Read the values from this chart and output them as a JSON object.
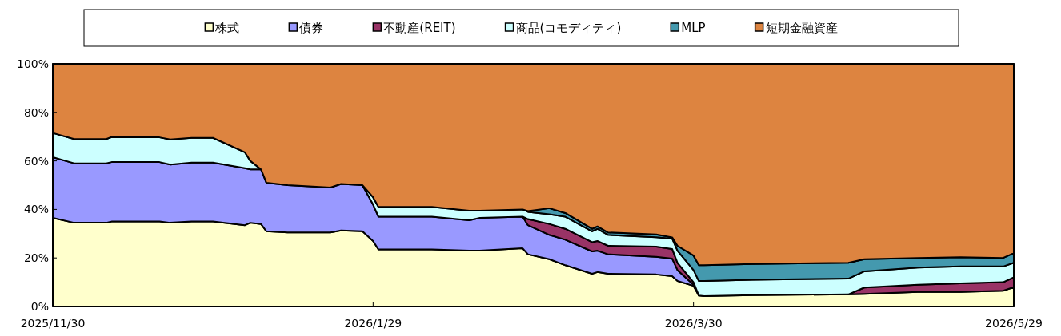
{
  "chart_data": {
    "type": "area",
    "stacked": true,
    "legend": "top",
    "grid": false,
    "x": [
      "2025-11-30",
      "2025-12-04",
      "2025-12-10",
      "2025-12-11",
      "2025-12-20",
      "2025-12-22",
      "2025-12-26",
      "2025-12-30",
      "2026-01-05",
      "2026-01-06",
      "2026-01-08",
      "2026-01-09",
      "2026-01-13",
      "2026-01-21",
      "2026-01-23",
      "2026-01-27",
      "2026-01-29",
      "2026-01-30",
      "2026-02-09",
      "2026-02-16",
      "2026-02-18",
      "2026-02-26",
      "2026-02-27",
      "2026-03-03",
      "2026-03-06",
      "2026-03-11",
      "2026-03-12",
      "2026-03-14",
      "2026-03-23",
      "2026-03-26",
      "2026-03-27",
      "2026-03-30",
      "2026-03-31",
      "2026-04-01",
      "2026-04-10",
      "2026-04-28",
      "2026-05-01",
      "2026-05-11",
      "2026-05-19",
      "2026-05-27",
      "2026-05-29"
    ],
    "xlim": [
      "2025-11-30",
      "2026-05-29"
    ],
    "xticks": [
      {
        "value": "2025-11-30",
        "label": "2025/11/30"
      },
      {
        "value": "2026-01-29",
        "label": "2026/1/29"
      },
      {
        "value": "2026-03-30",
        "label": "2026/3/30"
      },
      {
        "value": "2026-05-29",
        "label": "2026/5/29"
      }
    ],
    "ylim": [
      0,
      100
    ],
    "yticks": [
      {
        "value": 0,
        "label": "0%"
      },
      {
        "value": 20,
        "label": "20%"
      },
      {
        "value": 40,
        "label": "40%"
      },
      {
        "value": 60,
        "label": "60%"
      },
      {
        "value": 80,
        "label": "80%"
      },
      {
        "value": 100,
        "label": "100%"
      }
    ],
    "series": [
      {
        "name": "株式",
        "color": "#ffffcc",
        "values": [
          36.5,
          34.5,
          34.5,
          35,
          35,
          34.5,
          35,
          35,
          33.5,
          34.5,
          34,
          31,
          30.5,
          30.5,
          31.3,
          31,
          27,
          23.5,
          23.5,
          23,
          23,
          24,
          21.5,
          19.5,
          17,
          13.5,
          14.2,
          13.5,
          13.2,
          12.5,
          10.5,
          8.5,
          4.5,
          4.3,
          4.7,
          5,
          5.2,
          6,
          6,
          6.5,
          8
        ]
      },
      {
        "name": "債券",
        "color": "#9999ff",
        "values": [
          25,
          24.5,
          24.5,
          24.5,
          24.5,
          24,
          24.3,
          24.3,
          23.5,
          22,
          22.5,
          20,
          19.5,
          18.5,
          19.2,
          19,
          15,
          13.5,
          13.5,
          12.5,
          13.5,
          13,
          12,
          10,
          10.5,
          9.2,
          8.8,
          8,
          7.3,
          7.2,
          4.5,
          0.5,
          0,
          null,
          null,
          null,
          null,
          null,
          null,
          null,
          null
        ]
      },
      {
        "name": "不動産(REIT)",
        "color": "#993366",
        "values": [
          null,
          null,
          null,
          null,
          null,
          null,
          null,
          null,
          null,
          null,
          null,
          null,
          null,
          null,
          null,
          null,
          null,
          null,
          null,
          null,
          null,
          0,
          2.5,
          4.5,
          4.5,
          3.8,
          4,
          3.5,
          4.2,
          4,
          3,
          1,
          0,
          null,
          null,
          0,
          2.6,
          3,
          3.5,
          3.5,
          4
        ]
      },
      {
        "name": "商品(コモディティ)",
        "color": "#ccffff",
        "values": [
          10,
          10,
          10,
          10.3,
          10.2,
          10.3,
          10.2,
          10.2,
          6.5,
          3.5,
          0,
          null,
          null,
          null,
          null,
          0,
          3,
          4,
          4,
          4,
          3,
          3,
          3,
          4,
          5,
          4.5,
          5,
          4.5,
          3.8,
          4.3,
          5,
          5,
          6,
          6.2,
          6.3,
          6.5,
          6.7,
          7,
          7,
          6.5,
          6
        ]
      },
      {
        "name": "MLP",
        "color": "#4499ae",
        "values": [
          null,
          null,
          null,
          null,
          null,
          null,
          null,
          null,
          null,
          null,
          null,
          null,
          null,
          null,
          null,
          null,
          null,
          null,
          null,
          null,
          null,
          0,
          0.3,
          2.5,
          1.5,
          1,
          1,
          1,
          1.2,
          0.5,
          2,
          6,
          6.5,
          6.5,
          6.5,
          6.5,
          5,
          4,
          3.8,
          3.5,
          4
        ]
      },
      {
        "name": "短期金融資産",
        "color": "#dd8440",
        "values": [
          28.5,
          31,
          31,
          30.2,
          30.3,
          31.2,
          30.5,
          30.5,
          36.5,
          40,
          43.5,
          49,
          50,
          51,
          49.5,
          50,
          55,
          59,
          59,
          60.5,
          60.5,
          60,
          60.7,
          59.5,
          61.5,
          68,
          67,
          69.5,
          70.3,
          71.5,
          75,
          79,
          83,
          83,
          82.5,
          82,
          80.5,
          80,
          79.7,
          80,
          78
        ]
      }
    ]
  }
}
